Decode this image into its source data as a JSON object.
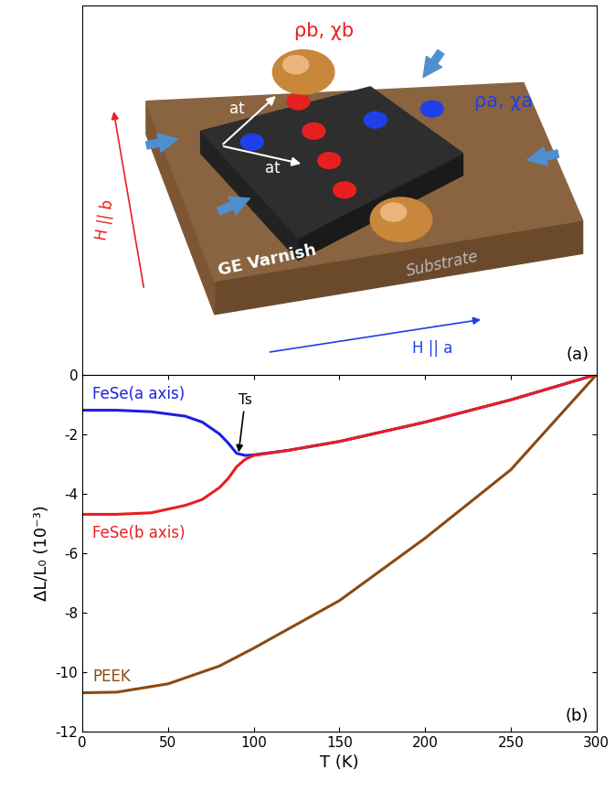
{
  "diagram": {
    "panel": "(a)",
    "labels": {
      "rho_b": "ρb, χb",
      "rho_a": "ρa, χa",
      "axis_1": "at",
      "axis_2": "at",
      "field_b": "H || b",
      "field_a": "H || a",
      "varnish": "GE Varnish",
      "substrate": "Substrate"
    }
  },
  "chart_data": {
    "type": "line",
    "panel": "(b)",
    "x_label": "T (K)",
    "y_label": "ΔL/L₀ (10⁻³)",
    "xlim": [
      0,
      300
    ],
    "xticks": [
      0,
      50,
      100,
      150,
      200,
      250,
      300
    ],
    "ylim": [
      -12,
      0
    ],
    "yticks": [
      -12,
      -10,
      -8,
      -6,
      -4,
      -2,
      0
    ],
    "annotations": [
      {
        "text": "Ts",
        "x": 91,
        "y": -2.7
      }
    ],
    "series": [
      {
        "name": "FeSe(a axis)",
        "color": "#1f1fe0",
        "x": [
          0,
          20,
          40,
          60,
          70,
          80,
          85,
          90,
          95,
          100,
          120,
          150,
          200,
          250,
          300
        ],
        "values": [
          -1.2,
          -1.2,
          -1.25,
          -1.4,
          -1.6,
          -2.0,
          -2.3,
          -2.65,
          -2.72,
          -2.7,
          -2.55,
          -2.25,
          -1.6,
          -0.85,
          0
        ]
      },
      {
        "name": "FeSe(b axis)",
        "color": "#e81f1f",
        "x": [
          0,
          20,
          40,
          60,
          70,
          80,
          85,
          90,
          95,
          100,
          120,
          150,
          200,
          250,
          300
        ],
        "values": [
          -4.7,
          -4.7,
          -4.65,
          -4.4,
          -4.2,
          -3.8,
          -3.5,
          -3.1,
          -2.85,
          -2.72,
          -2.55,
          -2.25,
          -1.6,
          -0.85,
          0
        ]
      },
      {
        "name": "PEEK",
        "color": "#8b4a12",
        "x": [
          0,
          20,
          50,
          80,
          100,
          150,
          200,
          250,
          300
        ],
        "values": [
          -10.7,
          -10.68,
          -10.4,
          -9.8,
          -9.2,
          -7.6,
          -5.5,
          -3.2,
          0
        ]
      }
    ]
  }
}
